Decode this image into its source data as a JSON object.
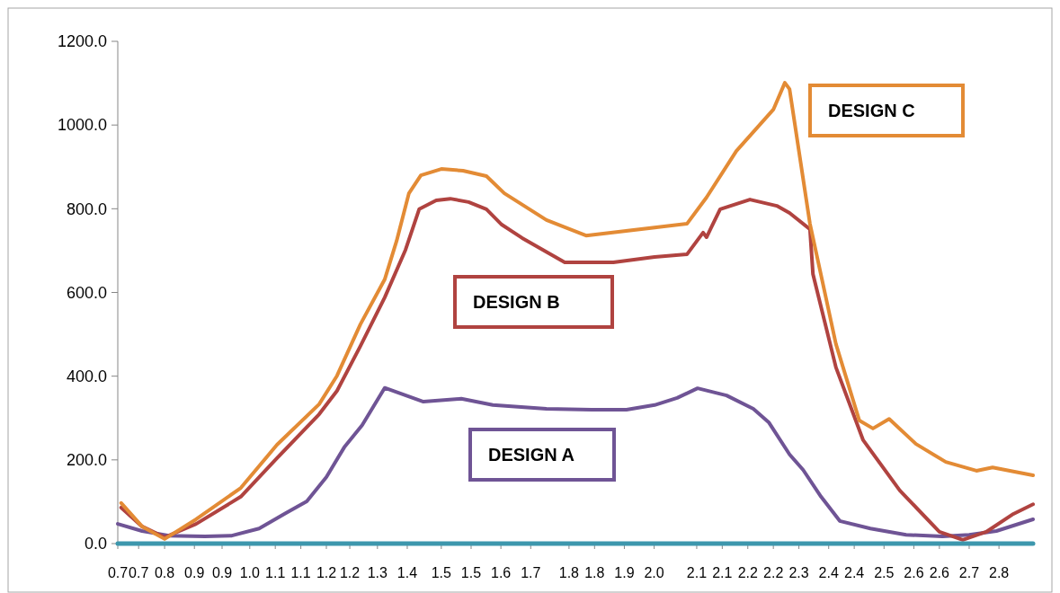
{
  "chart_data": {
    "type": "line",
    "xlim": [
      0.7,
      2.85
    ],
    "ylim": [
      0,
      1200
    ],
    "xticks": [
      {
        "value": 0.7,
        "label": "0.7"
      },
      {
        "value": 0.749,
        "label": "0.7"
      },
      {
        "value": 0.81,
        "label": "0.8"
      },
      {
        "value": 0.88,
        "label": "0.9"
      },
      {
        "value": 0.945,
        "label": "0.9"
      },
      {
        "value": 1.01,
        "label": "1.0"
      },
      {
        "value": 1.07,
        "label": "1.1"
      },
      {
        "value": 1.13,
        "label": "1.1"
      },
      {
        "value": 1.19,
        "label": "1.2"
      },
      {
        "value": 1.245,
        "label": "1.2"
      },
      {
        "value": 1.31,
        "label": "1.3"
      },
      {
        "value": 1.38,
        "label": "1.4"
      },
      {
        "value": 1.46,
        "label": "1.5"
      },
      {
        "value": 1.53,
        "label": "1.5"
      },
      {
        "value": 1.6,
        "label": "1.6"
      },
      {
        "value": 1.67,
        "label": "1.7"
      },
      {
        "value": 1.76,
        "label": "1.8"
      },
      {
        "value": 1.82,
        "label": "1.8"
      },
      {
        "value": 1.89,
        "label": "1.9"
      },
      {
        "value": 1.96,
        "label": "2.0"
      },
      {
        "value": 2.06,
        "label": "2.1"
      },
      {
        "value": 2.12,
        "label": "2.1"
      },
      {
        "value": 2.18,
        "label": "2.2"
      },
      {
        "value": 2.24,
        "label": "2.2"
      },
      {
        "value": 2.3,
        "label": "2.3"
      },
      {
        "value": 2.37,
        "label": "2.4"
      },
      {
        "value": 2.43,
        "label": "2.4"
      },
      {
        "value": 2.5,
        "label": "2.5"
      },
      {
        "value": 2.57,
        "label": "2.6"
      },
      {
        "value": 2.63,
        "label": "2.6"
      },
      {
        "value": 2.7,
        "label": "2.7"
      },
      {
        "value": 2.77,
        "label": "2.8"
      }
    ],
    "yticks": [
      {
        "value": 0,
        "label": "0.0"
      },
      {
        "value": 200,
        "label": "200.0"
      },
      {
        "value": 400,
        "label": "400.0"
      },
      {
        "value": 600,
        "label": "600.0"
      },
      {
        "value": 800,
        "label": "800.0"
      },
      {
        "value": 1000,
        "label": "1000.0"
      },
      {
        "value": 1200,
        "label": "1200.0"
      }
    ],
    "grid": false,
    "marker": "none",
    "line_style": "solid",
    "series": [
      {
        "name": "DESIGN A",
        "color": "#6f5495",
        "x": [
          0.7,
          0.757,
          0.82,
          0.905,
          0.968,
          1.032,
          1.095,
          1.144,
          1.19,
          1.232,
          1.274,
          1.327,
          1.418,
          1.507,
          1.581,
          1.707,
          1.813,
          1.895,
          1.961,
          2.014,
          2.062,
          2.13,
          2.193,
          2.229,
          2.278,
          2.31,
          2.352,
          2.396,
          2.468,
          2.552,
          2.637,
          2.7,
          2.764,
          2.85
        ],
        "values": [
          47,
          30,
          19,
          17,
          19,
          36,
          73,
          101,
          159,
          230,
          283,
          372,
          339,
          346,
          331,
          322,
          320,
          320,
          331,
          348,
          371,
          354,
          322,
          290,
          213,
          176,
          112,
          54,
          36,
          21,
          17,
          21,
          30,
          58
        ]
      },
      {
        "name": "DESIGN B",
        "color": "#b04340",
        "x": [
          0.708,
          0.757,
          0.81,
          0.884,
          0.989,
          1.074,
          1.173,
          1.215,
          1.27,
          1.327,
          1.376,
          1.408,
          1.448,
          1.481,
          1.524,
          1.566,
          1.602,
          1.65,
          1.75,
          1.864,
          1.961,
          2.037,
          2.075,
          2.083,
          2.115,
          2.185,
          2.248,
          2.278,
          2.326,
          2.333,
          2.387,
          2.451,
          2.537,
          2.63,
          2.685,
          2.74,
          2.804,
          2.85
        ],
        "values": [
          86,
          41,
          15,
          47,
          112,
          204,
          309,
          365,
          472,
          588,
          702,
          799,
          820,
          824,
          816,
          799,
          762,
          730,
          672,
          672,
          685,
          691,
          743,
          732,
          799,
          822,
          807,
          790,
          751,
          644,
          421,
          247,
          127,
          28,
          9,
          28,
          71,
          94
        ]
      },
      {
        "name": "DESIGN C",
        "color": "#e38b35",
        "x": [
          0.708,
          0.757,
          0.81,
          0.884,
          0.989,
          1.074,
          1.173,
          1.215,
          1.27,
          1.327,
          1.355,
          1.384,
          1.412,
          1.46,
          1.511,
          1.566,
          1.608,
          1.707,
          1.8,
          2.037,
          2.083,
          2.153,
          2.24,
          2.267,
          2.278,
          2.326,
          2.387,
          2.442,
          2.474,
          2.512,
          2.575,
          2.645,
          2.717,
          2.755,
          2.85
        ],
        "values": [
          97,
          41,
          11,
          58,
          133,
          236,
          333,
          401,
          524,
          631,
          723,
          837,
          880,
          895,
          891,
          878,
          837,
          773,
          736,
          764,
          827,
          938,
          1037,
          1101,
          1086,
          764,
          477,
          294,
          275,
          298,
          238,
          195,
          174,
          182,
          163
        ]
      },
      {
        "color": "#3d97ad",
        "x": [
          0.7,
          2.85
        ],
        "values": [
          0,
          0
        ]
      }
    ]
  }
}
